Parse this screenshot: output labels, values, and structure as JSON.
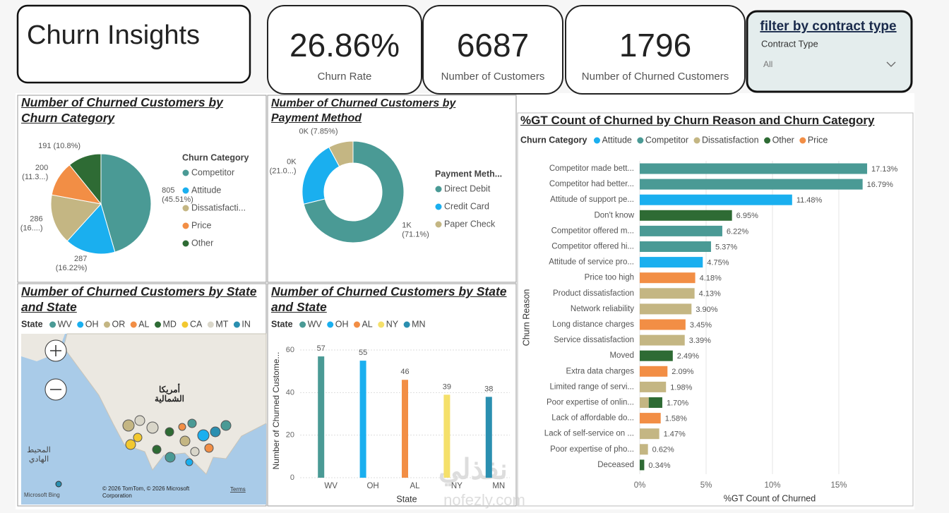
{
  "header": {
    "title": "Churn Insights"
  },
  "cards": [
    {
      "value": "26.86%",
      "label": "Churn Rate"
    },
    {
      "value": "6687",
      "label": "Number of Customers"
    },
    {
      "value": "1796",
      "label": "Number of Churned Customers"
    }
  ],
  "filter": {
    "title": "filter by contract type",
    "label": "Contract Type",
    "value": "All"
  },
  "map": {
    "title": "Number of Churned Customers by State and State",
    "legend_title": "State",
    "legend": [
      {
        "name": "WV",
        "color": "#4a9a95"
      },
      {
        "name": "OH",
        "color": "#1aafef"
      },
      {
        "name": "OR",
        "color": "#c4b683"
      },
      {
        "name": "AL",
        "color": "#f28e45"
      },
      {
        "name": "MD",
        "color": "#2e6b34"
      },
      {
        "name": "CA",
        "color": "#f2c82f"
      },
      {
        "name": "MT",
        "color": "#d9d6c9"
      },
      {
        "name": "IN",
        "color": "#2a8fb0"
      }
    ],
    "labels": [
      "أمريكا",
      "الشمالية",
      "المحيط",
      "الهادي"
    ],
    "credits": [
      "© 2026 TomTom, © 2026 Microsoft",
      "Corporation",
      "Terms",
      "Microsoft Bing"
    ]
  },
  "watermark": [
    "نفذلي",
    "nofezly.com"
  ],
  "chart_data": [
    {
      "type": "pie",
      "title": "Number of Churned Customers by Churn Category",
      "legend_title": "Churn Category",
      "categories": [
        "Competitor",
        "Attitude",
        "Dissatisfacti...",
        "Price",
        "Other"
      ],
      "values": [
        805,
        287,
        286,
        200,
        191
      ],
      "value_labels": [
        [
          "805",
          "(45.51%)"
        ],
        [
          "287",
          "(16.22%)"
        ],
        [
          "286",
          "(16....)"
        ],
        [
          "200",
          "(11.3...)"
        ],
        [
          "191 (10.8%)"
        ]
      ],
      "colors": [
        "#4a9a95",
        "#1aafef",
        "#c4b683",
        "#f28e45",
        "#2e6b34"
      ]
    },
    {
      "type": "donut",
      "title": "Number of Churned Customers by Payment Method",
      "legend_title": "Payment Meth...",
      "categories": [
        "Direct Debit",
        "Credit Card",
        "Paper Check"
      ],
      "values": [
        1277,
        377,
        141
      ],
      "value_labels": [
        [
          "1K",
          "(71.1%)"
        ],
        [
          "0K",
          "(21.0...)"
        ],
        [
          "0K (7.85%)"
        ]
      ],
      "colors": [
        "#4a9a95",
        "#1aafef",
        "#c4b683"
      ]
    },
    {
      "type": "bar",
      "title": "Number of Churned Customers by State and State",
      "legend_title": "State",
      "categories": [
        "WV",
        "OH",
        "AL",
        "NY",
        "MN"
      ],
      "values": [
        57,
        55,
        46,
        39,
        38
      ],
      "colors": [
        "#4a9a95",
        "#1aafef",
        "#f28e45",
        "#f5e06a",
        "#2a8fb0"
      ],
      "xlabel": "State",
      "ylabel": "Number of Churned Custome...",
      "ylim": [
        0,
        63
      ],
      "yticks": [
        0,
        20,
        40,
        60
      ],
      "grid": true
    },
    {
      "type": "hbar_stacked",
      "title": "%GT Count of Churned by Churn Reason and Churn Category",
      "legend_title": "Churn Category",
      "categories": [
        "Competitor made bett...",
        "Competitor had better...",
        "Attitude of support pe...",
        "Don't know",
        "Competitor offered m...",
        "Competitor offered hi...",
        "Attitude of service pro...",
        "Price too high",
        "Product dissatisfaction",
        "Network reliability",
        "Long distance charges",
        "Service dissatisfaction",
        "Moved",
        "Extra data charges",
        "Limited range of servi...",
        "Poor expertise of onlin...",
        "Lack of affordable do...",
        "Lack of self-service on ...",
        "Poor expertise of pho...",
        "Deceased"
      ],
      "series": [
        {
          "name": "Attitude",
          "color": "#1aafef",
          "values": [
            null,
            null,
            11.48,
            null,
            null,
            null,
            4.75,
            null,
            null,
            null,
            null,
            null,
            null,
            null,
            null,
            null,
            null,
            null,
            null,
            null
          ]
        },
        {
          "name": "Competitor",
          "color": "#4a9a95",
          "values": [
            17.13,
            16.79,
            null,
            null,
            6.22,
            5.37,
            null,
            null,
            null,
            null,
            null,
            null,
            null,
            null,
            null,
            null,
            null,
            null,
            null,
            null
          ]
        },
        {
          "name": "Dissatisfaction",
          "color": "#c4b683",
          "values": [
            null,
            null,
            null,
            null,
            null,
            null,
            null,
            null,
            4.13,
            3.9,
            null,
            3.39,
            null,
            null,
            1.98,
            0.68,
            null,
            1.47,
            0.62,
            null
          ]
        },
        {
          "name": "Other",
          "color": "#2e6b34",
          "values": [
            null,
            null,
            null,
            6.95,
            null,
            null,
            null,
            null,
            null,
            null,
            null,
            null,
            2.49,
            null,
            null,
            1.02,
            null,
            null,
            null,
            0.34
          ]
        },
        {
          "name": "Price",
          "color": "#f28e45",
          "values": [
            null,
            null,
            null,
            null,
            null,
            null,
            null,
            4.18,
            null,
            null,
            3.45,
            null,
            null,
            2.09,
            null,
            null,
            1.58,
            null,
            null,
            null
          ]
        }
      ],
      "totals": [
        17.13,
        16.79,
        11.48,
        6.95,
        6.22,
        5.37,
        4.75,
        4.18,
        4.13,
        3.9,
        3.45,
        3.39,
        2.49,
        2.09,
        1.98,
        1.7,
        1.58,
        1.47,
        0.62,
        0.34
      ],
      "total_labels": [
        "17.13%",
        "16.79%",
        "11.48%",
        "6.95%",
        "6.22%",
        "5.37%",
        "4.75%",
        "4.18%",
        "4.13%",
        "3.90%",
        "3.45%",
        "3.39%",
        "2.49%",
        "2.09%",
        "1.98%",
        "1.70%",
        "1.58%",
        "1.47%",
        "0.62%",
        "0.34%"
      ],
      "xlim": [
        0,
        17.5
      ],
      "xticks": [
        {
          "value": 0,
          "label": "0%"
        },
        {
          "value": 5,
          "label": "5%"
        },
        {
          "value": 10,
          "label": "10%"
        },
        {
          "value": 15,
          "label": "15%"
        }
      ],
      "xlabel": "%GT Count of Churned",
      "ylabel": "Churn Reason",
      "grid": true
    }
  ]
}
